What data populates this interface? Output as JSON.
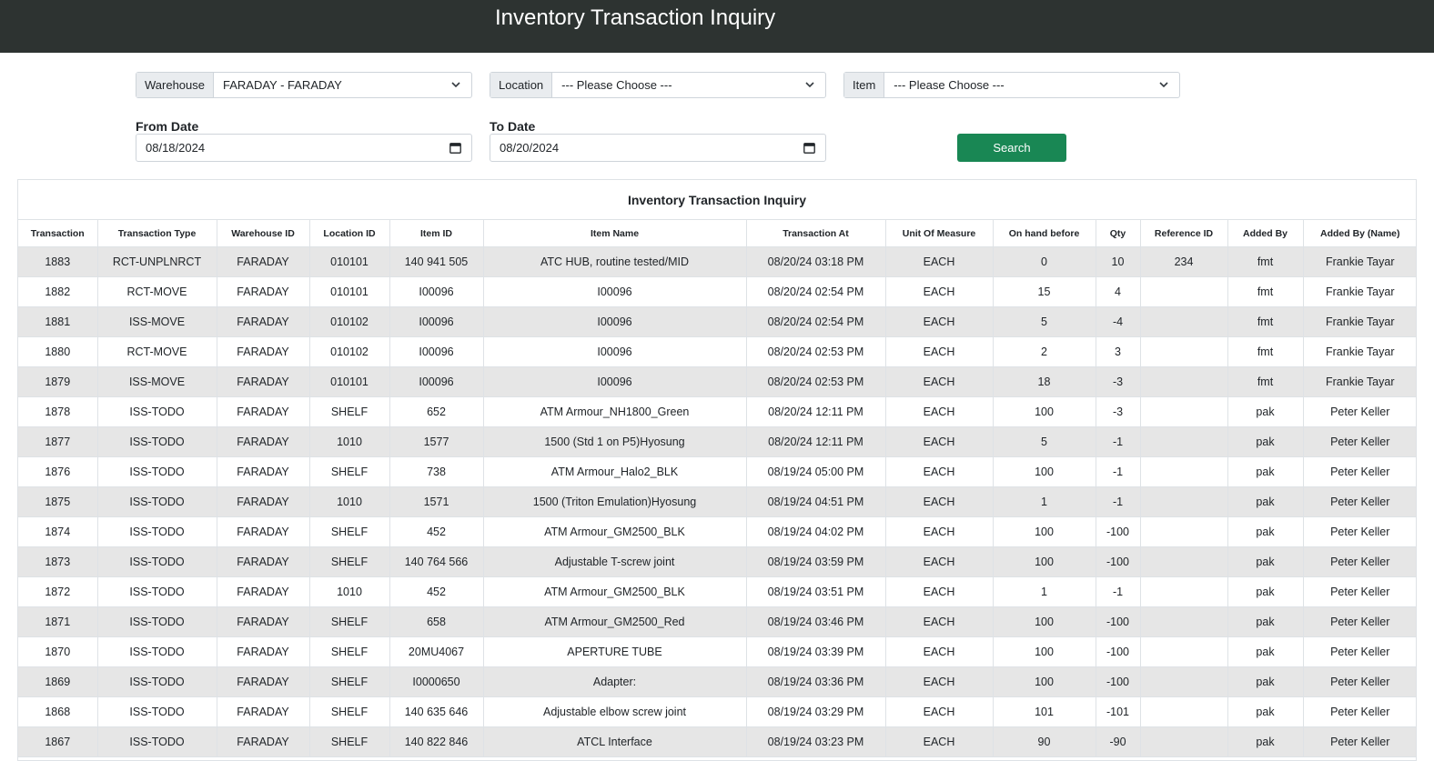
{
  "header": {
    "title": "Inventory Transaction Inquiry"
  },
  "filters": {
    "warehouse_label": "Warehouse",
    "warehouse_value": "FARADAY - FARADAY",
    "location_label": "Location",
    "location_value": "--- Please Choose ---",
    "item_label": "Item",
    "item_value": "--- Please Choose ---",
    "from_date_label": "From Date",
    "from_date_value": "08/18/2024",
    "to_date_label": "To Date",
    "to_date_value": "08/20/2024",
    "search_label": "Search"
  },
  "table": {
    "title": "Inventory Transaction Inquiry",
    "columns": [
      "Transaction",
      "Transaction Type",
      "Warehouse ID",
      "Location ID",
      "Item ID",
      "Item Name",
      "Transaction At",
      "Unit Of Measure",
      "On hand before",
      "Qty",
      "Reference ID",
      "Added By",
      "Added By (Name)"
    ],
    "rows": [
      [
        "1883",
        "RCT-UNPLNRCT",
        "FARADAY",
        "010101",
        "140 941 505",
        "ATC HUB, routine tested/MID",
        "08/20/24 03:18 PM",
        "EACH",
        "0",
        "10",
        "234",
        "fmt",
        "Frankie Tayar"
      ],
      [
        "1882",
        "RCT-MOVE",
        "FARADAY",
        "010101",
        "I00096",
        "I00096",
        "08/20/24 02:54 PM",
        "EACH",
        "15",
        "4",
        "",
        "fmt",
        "Frankie Tayar"
      ],
      [
        "1881",
        "ISS-MOVE",
        "FARADAY",
        "010102",
        "I00096",
        "I00096",
        "08/20/24 02:54 PM",
        "EACH",
        "5",
        "-4",
        "",
        "fmt",
        "Frankie Tayar"
      ],
      [
        "1880",
        "RCT-MOVE",
        "FARADAY",
        "010102",
        "I00096",
        "I00096",
        "08/20/24 02:53 PM",
        "EACH",
        "2",
        "3",
        "",
        "fmt",
        "Frankie Tayar"
      ],
      [
        "1879",
        "ISS-MOVE",
        "FARADAY",
        "010101",
        "I00096",
        "I00096",
        "08/20/24 02:53 PM",
        "EACH",
        "18",
        "-3",
        "",
        "fmt",
        "Frankie Tayar"
      ],
      [
        "1878",
        "ISS-TODO",
        "FARADAY",
        "SHELF",
        "652",
        "ATM Armour_NH1800_Green",
        "08/20/24 12:11 PM",
        "EACH",
        "100",
        "-3",
        "",
        "pak",
        "Peter Keller"
      ],
      [
        "1877",
        "ISS-TODO",
        "FARADAY",
        "1010",
        "1577",
        "1500 (Std 1 on P5)Hyosung",
        "08/20/24 12:11 PM",
        "EACH",
        "5",
        "-1",
        "",
        "pak",
        "Peter Keller"
      ],
      [
        "1876",
        "ISS-TODO",
        "FARADAY",
        "SHELF",
        "738",
        "ATM Armour_Halo2_BLK",
        "08/19/24 05:00 PM",
        "EACH",
        "100",
        "-1",
        "",
        "pak",
        "Peter Keller"
      ],
      [
        "1875",
        "ISS-TODO",
        "FARADAY",
        "1010",
        "1571",
        "1500 (Triton Emulation)Hyosung",
        "08/19/24 04:51 PM",
        "EACH",
        "1",
        "-1",
        "",
        "pak",
        "Peter Keller"
      ],
      [
        "1874",
        "ISS-TODO",
        "FARADAY",
        "SHELF",
        "452",
        "ATM Armour_GM2500_BLK",
        "08/19/24 04:02 PM",
        "EACH",
        "100",
        "-100",
        "",
        "pak",
        "Peter Keller"
      ],
      [
        "1873",
        "ISS-TODO",
        "FARADAY",
        "SHELF",
        "140 764 566",
        "Adjustable T-screw joint",
        "08/19/24 03:59 PM",
        "EACH",
        "100",
        "-100",
        "",
        "pak",
        "Peter Keller"
      ],
      [
        "1872",
        "ISS-TODO",
        "FARADAY",
        "1010",
        "452",
        "ATM Armour_GM2500_BLK",
        "08/19/24 03:51 PM",
        "EACH",
        "1",
        "-1",
        "",
        "pak",
        "Peter Keller"
      ],
      [
        "1871",
        "ISS-TODO",
        "FARADAY",
        "SHELF",
        "658",
        "ATM Armour_GM2500_Red",
        "08/19/24 03:46 PM",
        "EACH",
        "100",
        "-100",
        "",
        "pak",
        "Peter Keller"
      ],
      [
        "1870",
        "ISS-TODO",
        "FARADAY",
        "SHELF",
        "20MU4067",
        "APERTURE TUBE",
        "08/19/24 03:39 PM",
        "EACH",
        "100",
        "-100",
        "",
        "pak",
        "Peter Keller"
      ],
      [
        "1869",
        "ISS-TODO",
        "FARADAY",
        "SHELF",
        "I0000650",
        "Adapter:",
        "08/19/24 03:36 PM",
        "EACH",
        "100",
        "-100",
        "",
        "pak",
        "Peter Keller"
      ],
      [
        "1868",
        "ISS-TODO",
        "FARADAY",
        "SHELF",
        "140 635 646",
        "Adjustable elbow screw joint",
        "08/19/24 03:29 PM",
        "EACH",
        "101",
        "-101",
        "",
        "pak",
        "Peter Keller"
      ],
      [
        "1867",
        "ISS-TODO",
        "FARADAY",
        "SHELF",
        "140 822 846",
        "ATCL Interface",
        "08/19/24 03:23 PM",
        "EACH",
        "90",
        "-90",
        "",
        "pak",
        "Peter Keller"
      ]
    ]
  },
  "colors": {
    "header_bg": "#2d3331",
    "accent": "#198754",
    "stripe": "#e6e6e6"
  },
  "icons": {
    "dropdown": "chevron-down-icon",
    "date": "calendar-icon"
  }
}
